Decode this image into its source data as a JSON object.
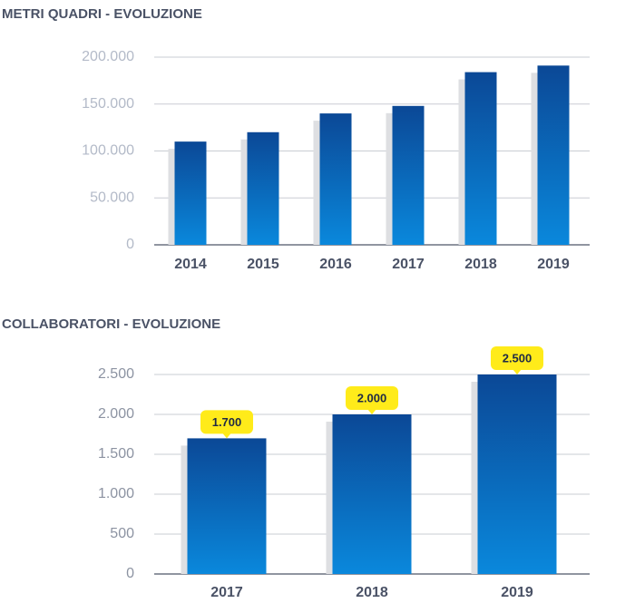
{
  "chart_data": [
    {
      "type": "bar",
      "title": "METRI QUADRI - EVOLUZIONE",
      "categories": [
        "2014",
        "2015",
        "2016",
        "2017",
        "2018",
        "2019"
      ],
      "values": [
        110000,
        120000,
        140000,
        148000,
        184000,
        191000
      ],
      "ylim": [
        0,
        200000
      ],
      "yticks": [
        0,
        {
          "value": 50000,
          "label": "50.000"
        },
        {
          "value": 100000,
          "label": "100.000"
        },
        {
          "value": 150000,
          "label": "150.000"
        },
        {
          "value": 200000,
          "label": "200.000"
        }
      ],
      "grid": true,
      "colors": [
        "#0b4896",
        "#0a88dc"
      ]
    },
    {
      "type": "bar",
      "title": "COLLABORATORI - EVOLUZIONE",
      "categories": [
        "2017",
        "2018",
        "2019"
      ],
      "values": [
        1700,
        2000,
        2500
      ],
      "value_labels": [
        "1.700",
        "2.000",
        "2.500"
      ],
      "ylim": [
        0,
        2500
      ],
      "yticks": [
        0,
        500,
        {
          "value": 1000,
          "label": "1.000"
        },
        {
          "value": 1500,
          "label": "1.500"
        },
        {
          "value": 2000,
          "label": "2.000"
        },
        {
          "value": 2500,
          "label": "2.500"
        }
      ],
      "grid": true,
      "colors": [
        "#0b4896",
        "#0a88dc"
      ]
    }
  ]
}
